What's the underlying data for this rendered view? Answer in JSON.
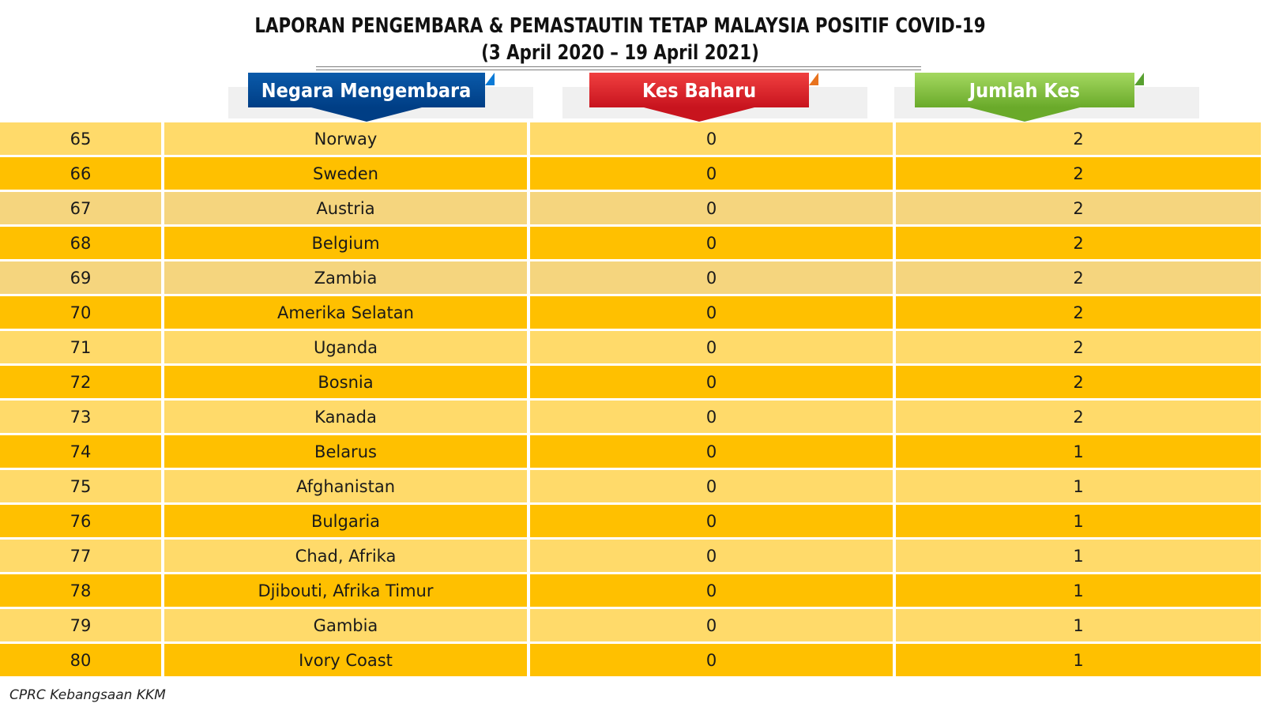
{
  "title": {
    "line1": "LAPORAN PENGEMBARA & PEMASTAUTIN TETAP MALAYSIA POSITIF COVID-19",
    "line2": "(3 April 2020 – 19 April 2021)"
  },
  "headers": {
    "country": "Negara Mengembara",
    "new_cases": "Kes Baharu",
    "total_cases": "Jumlah Kes"
  },
  "colors": {
    "row_light": "#ffda6a",
    "row_dark": "#ffc000",
    "row_beige": "#f5d57e",
    "header_blue": "#0a5aaa",
    "header_red": "#e0282e",
    "header_green": "#86c44a"
  },
  "rows": [
    {
      "no": "65",
      "country": "Norway",
      "new": "0",
      "total": "2",
      "shade": "light"
    },
    {
      "no": "66",
      "country": "Sweden",
      "new": "0",
      "total": "2",
      "shade": "dark"
    },
    {
      "no": "67",
      "country": "Austria",
      "new": "0",
      "total": "2",
      "shade": "beige"
    },
    {
      "no": "68",
      "country": "Belgium",
      "new": "0",
      "total": "2",
      "shade": "dark"
    },
    {
      "no": "69",
      "country": "Zambia",
      "new": "0",
      "total": "2",
      "shade": "beige"
    },
    {
      "no": "70",
      "country": "Amerika Selatan",
      "new": "0",
      "total": "2",
      "shade": "dark"
    },
    {
      "no": "71",
      "country": "Uganda",
      "new": "0",
      "total": "2",
      "shade": "light"
    },
    {
      "no": "72",
      "country": "Bosnia",
      "new": "0",
      "total": "2",
      "shade": "dark"
    },
    {
      "no": "73",
      "country": "Kanada",
      "new": "0",
      "total": "2",
      "shade": "light"
    },
    {
      "no": "74",
      "country": "Belarus",
      "new": "0",
      "total": "1",
      "shade": "dark"
    },
    {
      "no": "75",
      "country": "Afghanistan",
      "new": "0",
      "total": "1",
      "shade": "light"
    },
    {
      "no": "76",
      "country": "Bulgaria",
      "new": "0",
      "total": "1",
      "shade": "dark"
    },
    {
      "no": "77",
      "country": "Chad, Afrika",
      "new": "0",
      "total": "1",
      "shade": "light"
    },
    {
      "no": "78",
      "country": "Djibouti, Afrika Timur",
      "new": "0",
      "total": "1",
      "shade": "dark"
    },
    {
      "no": "79",
      "country": "Gambia",
      "new": "0",
      "total": "1",
      "shade": "light"
    },
    {
      "no": "80",
      "country": "Ivory Coast",
      "new": "0",
      "total": "1",
      "shade": "dark"
    }
  ],
  "footer": "CPRC Kebangsaan KKM"
}
